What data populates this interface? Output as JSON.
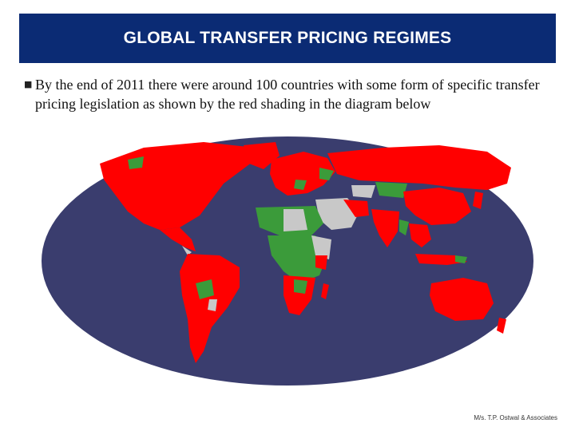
{
  "header": {
    "title": "GLOBAL TRANSFER PRICING REGIMES"
  },
  "bullet": {
    "text": "By the end of 2011 there were around 100 countries with some form of specific transfer pricing legislation as shown by the red shading in the diagram below"
  },
  "map": {
    "ocean_color": "#3a3d6e",
    "legislation_color": "#ff0000",
    "other_color": "#3b9b3a",
    "none_color": "#c8c8c8"
  },
  "footer": {
    "credit": "M/s. T.P. Ostwal & Associates"
  }
}
